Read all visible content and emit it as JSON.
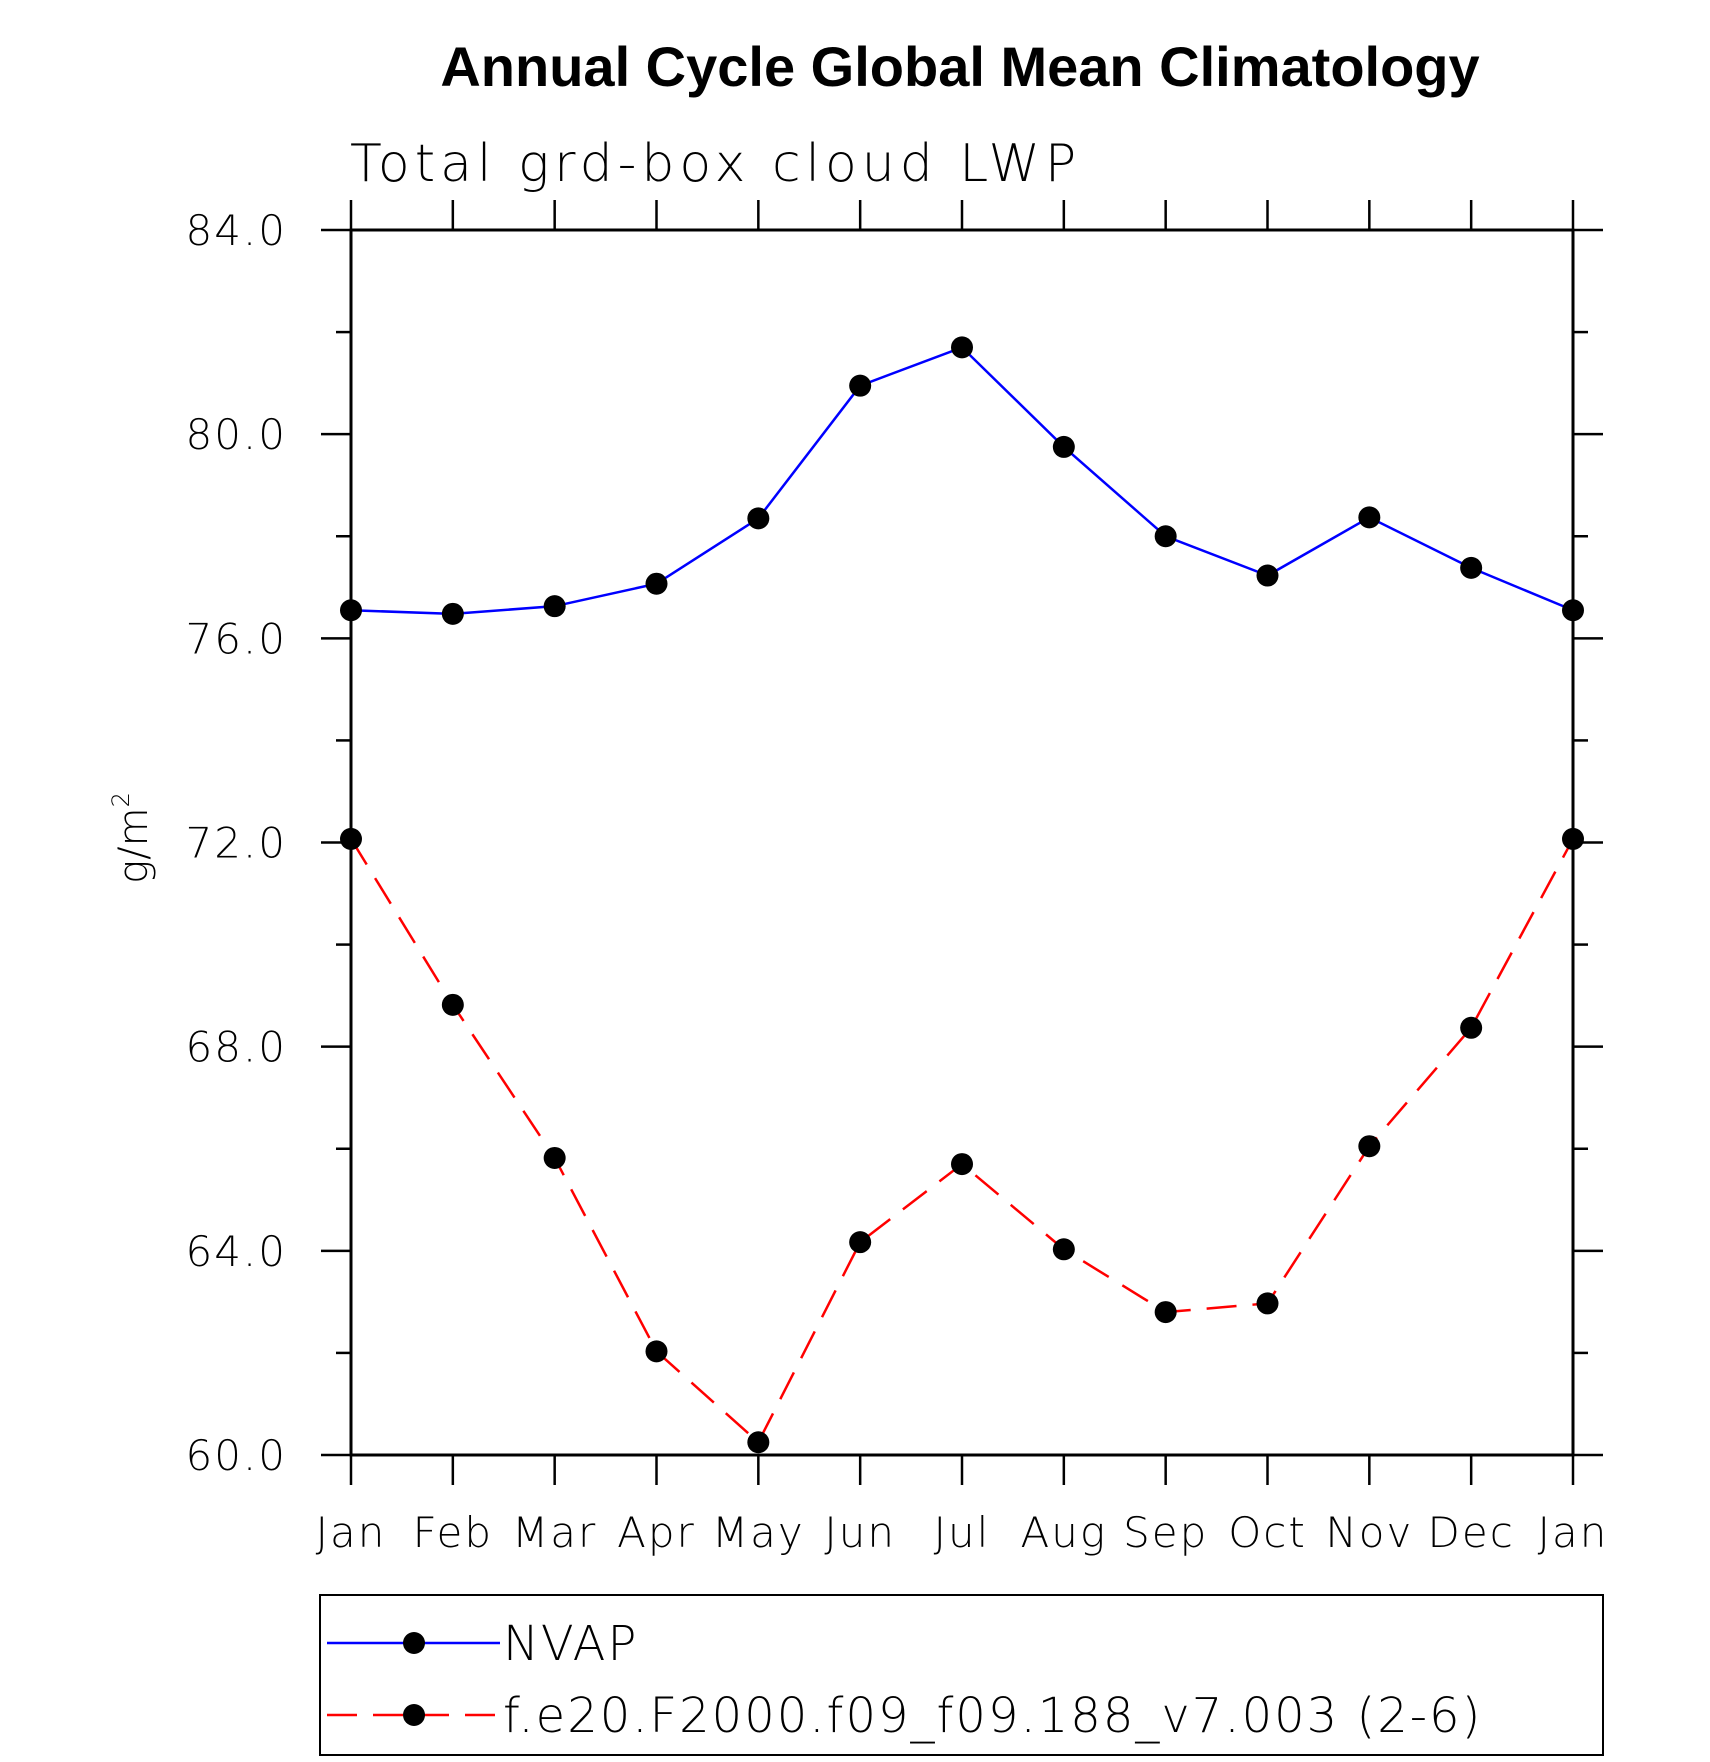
{
  "chart_data": {
    "type": "line",
    "title": "Annual Cycle Global Mean Climatology",
    "subtitle": "Total grd-box cloud LWP",
    "ylabel": "g/m",
    "ylabel_superscript": "2",
    "ylim": [
      60,
      84
    ],
    "yticks": [
      "60.0",
      "64.0",
      "68.0",
      "72.0",
      "76.0",
      "80.0",
      "84.0"
    ],
    "categories": [
      "Jan",
      "Feb",
      "Mar",
      "Apr",
      "May",
      "Jun",
      "Jul",
      "Aug",
      "Sep",
      "Oct",
      "Nov",
      "Dec",
      "Jan"
    ],
    "grid": false,
    "legend_position": "bottom",
    "series": [
      {
        "name": "NVAP",
        "color": "#0000ff",
        "style": "solid",
        "values": [
          76.55,
          76.48,
          76.63,
          77.07,
          78.35,
          80.95,
          81.7,
          79.75,
          78.0,
          77.23,
          78.37,
          77.38,
          76.55
        ]
      },
      {
        "name": "f.e20.F2000.f09_f09.188_v7.003 (2-6)",
        "color": "#ff0000",
        "style": "dashed",
        "values": [
          72.07,
          68.82,
          65.82,
          62.03,
          60.25,
          64.17,
          65.7,
          64.03,
          62.8,
          62.97,
          66.05,
          68.37,
          72.07
        ]
      }
    ]
  }
}
